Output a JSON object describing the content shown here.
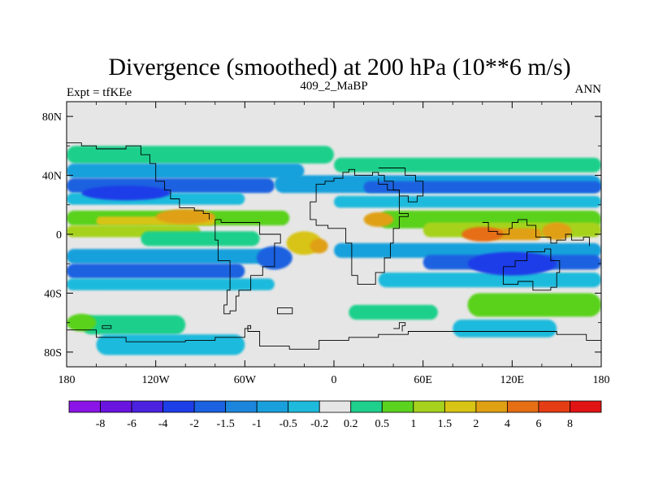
{
  "chart_data": {
    "type": "heatmap",
    "title": "Divergence (smoothed) at 200 hPa (10**6 m/s)",
    "subtitle_left": "Expt = tfKEe",
    "subtitle_center": "409_2_MaBP",
    "subtitle_right": "ANN",
    "x_ticks": [
      "180",
      "120W",
      "60W",
      "0",
      "60E",
      "120E",
      "180"
    ],
    "x_tick_values": [
      -180,
      -120,
      -60,
      0,
      60,
      120,
      180
    ],
    "y_ticks": [
      "80N",
      "40N",
      "0",
      "40S",
      "80S"
    ],
    "y_tick_values": [
      80,
      40,
      0,
      -40,
      -80
    ],
    "xlim": [
      -180,
      180
    ],
    "ylim": [
      -90,
      90
    ],
    "colorbar": {
      "labels": [
        "-8",
        "-6",
        "-4",
        "-2",
        "-1.5",
        "-1",
        "-0.5",
        "-0.2",
        "0.2",
        "0.5",
        "1",
        "1.5",
        "2",
        "4",
        "6",
        "8"
      ],
      "colors": [
        "#8a15e6",
        "#6a14e0",
        "#4a22e0",
        "#1e3ee8",
        "#1a62e0",
        "#1c86dc",
        "#19a0dc",
        "#1ebadc",
        "#e6e6e6",
        "#1ed08c",
        "#5ad21e",
        "#a6d21e",
        "#d8c414",
        "#e0a014",
        "#e66e14",
        "#e43c14",
        "#e01414"
      ]
    },
    "bands": [
      {
        "lat_top": 60,
        "lat_bot": 48,
        "lon_from": -180,
        "lon_to": 0,
        "color": "#1ed08c"
      },
      {
        "lat_top": 48,
        "lat_bot": 38,
        "lon_from": -180,
        "lon_to": -20,
        "color": "#19a0dc"
      },
      {
        "lat_top": 38,
        "lat_bot": 28,
        "lon_from": -180,
        "lon_to": -40,
        "color": "#1a62e0"
      },
      {
        "lat_top": 28,
        "lat_bot": 20,
        "lon_from": -180,
        "lon_to": -60,
        "color": "#1ebadc"
      },
      {
        "lat_top": 16,
        "lat_bot": 6,
        "lon_from": -180,
        "lon_to": -30,
        "color": "#5ad21e"
      },
      {
        "lat_top": 12,
        "lat_bot": 6,
        "lon_from": -160,
        "lon_to": -80,
        "color": "#d8c414"
      },
      {
        "lat_top": 6,
        "lat_bot": -2,
        "lon_from": -180,
        "lon_to": -90,
        "color": "#a6d21e"
      },
      {
        "lat_top": 2,
        "lat_bot": -8,
        "lon_from": -130,
        "lon_to": -50,
        "color": "#1ed08c"
      },
      {
        "lat_top": -10,
        "lat_bot": -20,
        "lon_from": -180,
        "lon_to": -40,
        "color": "#19a0dc"
      },
      {
        "lat_top": -20,
        "lat_bot": -30,
        "lon_from": -180,
        "lon_to": -60,
        "color": "#1a62e0"
      },
      {
        "lat_top": -30,
        "lat_bot": -38,
        "lon_from": -180,
        "lon_to": -40,
        "color": "#1ebadc"
      },
      {
        "lat_top": -55,
        "lat_bot": -68,
        "lon_from": -170,
        "lon_to": -100,
        "color": "#1ed08c"
      },
      {
        "lat_top": -68,
        "lat_bot": -82,
        "lon_from": -160,
        "lon_to": -60,
        "color": "#1ebadc"
      },
      {
        "lat_top": 52,
        "lat_bot": 42,
        "lon_from": 0,
        "lon_to": 180,
        "color": "#1ed08c"
      },
      {
        "lat_top": 40,
        "lat_bot": 28,
        "lon_from": -40,
        "lon_to": 180,
        "color": "#19a0dc"
      },
      {
        "lat_top": 36,
        "lat_bot": 28,
        "lon_from": 20,
        "lon_to": 180,
        "color": "#1a62e0"
      },
      {
        "lat_top": 26,
        "lat_bot": 18,
        "lon_from": 0,
        "lon_to": 180,
        "color": "#1ebadc"
      },
      {
        "lat_top": 16,
        "lat_bot": 4,
        "lon_from": 30,
        "lon_to": 180,
        "color": "#5ad21e"
      },
      {
        "lat_top": 8,
        "lat_bot": -2,
        "lon_from": 60,
        "lon_to": 180,
        "color": "#a6d21e"
      },
      {
        "lat_top": 4,
        "lat_bot": -4,
        "lon_from": 100,
        "lon_to": 140,
        "color": "#e0a014"
      },
      {
        "lat_top": -6,
        "lat_bot": -16,
        "lon_from": 0,
        "lon_to": 180,
        "color": "#19a0dc"
      },
      {
        "lat_top": -14,
        "lat_bot": -24,
        "lon_from": 60,
        "lon_to": 180,
        "color": "#1a62e0"
      },
      {
        "lat_top": -26,
        "lat_bot": -36,
        "lon_from": 30,
        "lon_to": 180,
        "color": "#1ebadc"
      },
      {
        "lat_top": -40,
        "lat_bot": -56,
        "lon_from": 90,
        "lon_to": 180,
        "color": "#5ad21e"
      },
      {
        "lat_top": -48,
        "lat_bot": -58,
        "lon_from": 10,
        "lon_to": 70,
        "color": "#1ed08c"
      },
      {
        "lat_top": -58,
        "lat_bot": -70,
        "lon_from": 80,
        "lon_to": 150,
        "color": "#1ebadc"
      }
    ],
    "blobs": [
      {
        "lon": -100,
        "lat": 12,
        "rlon": 20,
        "rlat": 5,
        "color": "#e0a014"
      },
      {
        "lon": -20,
        "lat": -6,
        "rlon": 12,
        "rlat": 8,
        "color": "#d8c414"
      },
      {
        "lon": -10,
        "lat": -8,
        "rlon": 6,
        "rlat": 5,
        "color": "#e0a014"
      },
      {
        "lon": 30,
        "lat": 10,
        "rlon": 10,
        "rlat": 5,
        "color": "#e0a014"
      },
      {
        "lon": 100,
        "lat": 0,
        "rlon": 14,
        "rlat": 5,
        "color": "#e66e14"
      },
      {
        "lon": 150,
        "lat": 2,
        "rlon": 10,
        "rlat": 6,
        "color": "#e0a014"
      },
      {
        "lon": -40,
        "lat": -16,
        "rlon": 12,
        "rlat": 8,
        "color": "#1a62e0"
      },
      {
        "lon": 120,
        "lat": -20,
        "rlon": 30,
        "rlat": 8,
        "color": "#1e3ee8"
      },
      {
        "lon": -140,
        "lat": 28,
        "rlon": 30,
        "rlat": 5,
        "color": "#1e3ee8"
      },
      {
        "lon": -170,
        "lat": -60,
        "rlon": 10,
        "rlat": 6,
        "color": "#5ad21e"
      }
    ]
  }
}
